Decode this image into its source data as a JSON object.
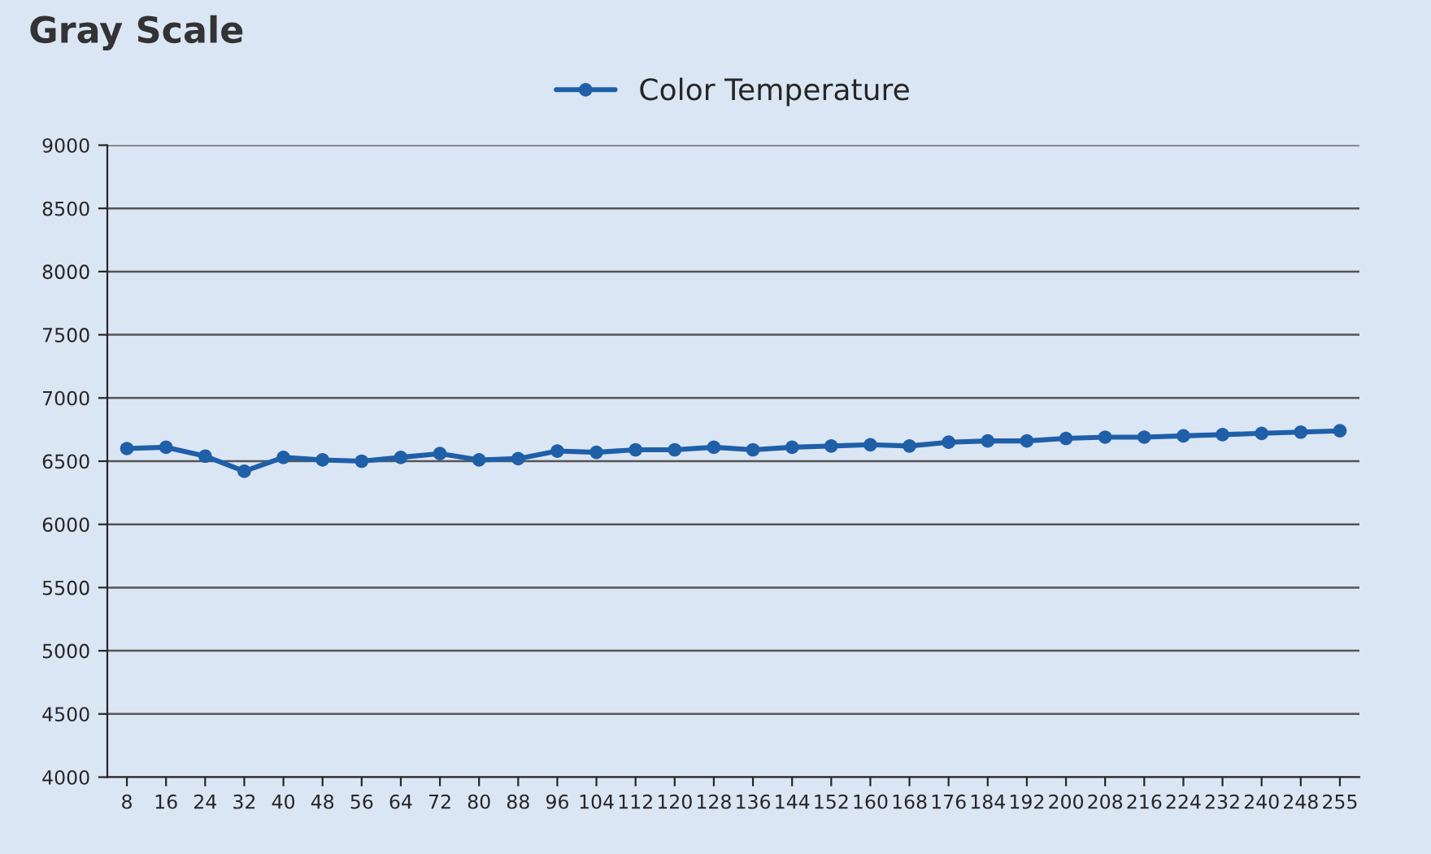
{
  "chart_data": {
    "type": "line",
    "title": "Gray Scale",
    "categories": [
      "8",
      "16",
      "24",
      "32",
      "40",
      "48",
      "56",
      "64",
      "72",
      "80",
      "88",
      "96",
      "104",
      "112",
      "120",
      "128",
      "136",
      "144",
      "152",
      "160",
      "168",
      "176",
      "184",
      "192",
      "200",
      "208",
      "216",
      "224",
      "232",
      "240",
      "248",
      "255"
    ],
    "series": [
      {
        "name": "Color Temperature",
        "color": "#1f5fa8",
        "values": [
          6600,
          6610,
          6540,
          6420,
          6530,
          6510,
          6500,
          6530,
          6560,
          6510,
          6520,
          6580,
          6570,
          6590,
          6590,
          6610,
          6590,
          6610,
          6620,
          6630,
          6620,
          6650,
          6660,
          6660,
          6680,
          6690,
          6690,
          6700,
          6710,
          6720,
          6730,
          6740
        ]
      }
    ],
    "ylim": [
      4000,
      9000
    ],
    "yticks": [
      4000,
      4500,
      5000,
      5500,
      6000,
      6500,
      7000,
      7500,
      8000,
      8500,
      9000
    ],
    "grid": "y",
    "legend": "top",
    "marker": "circle",
    "line_style": "solid"
  }
}
